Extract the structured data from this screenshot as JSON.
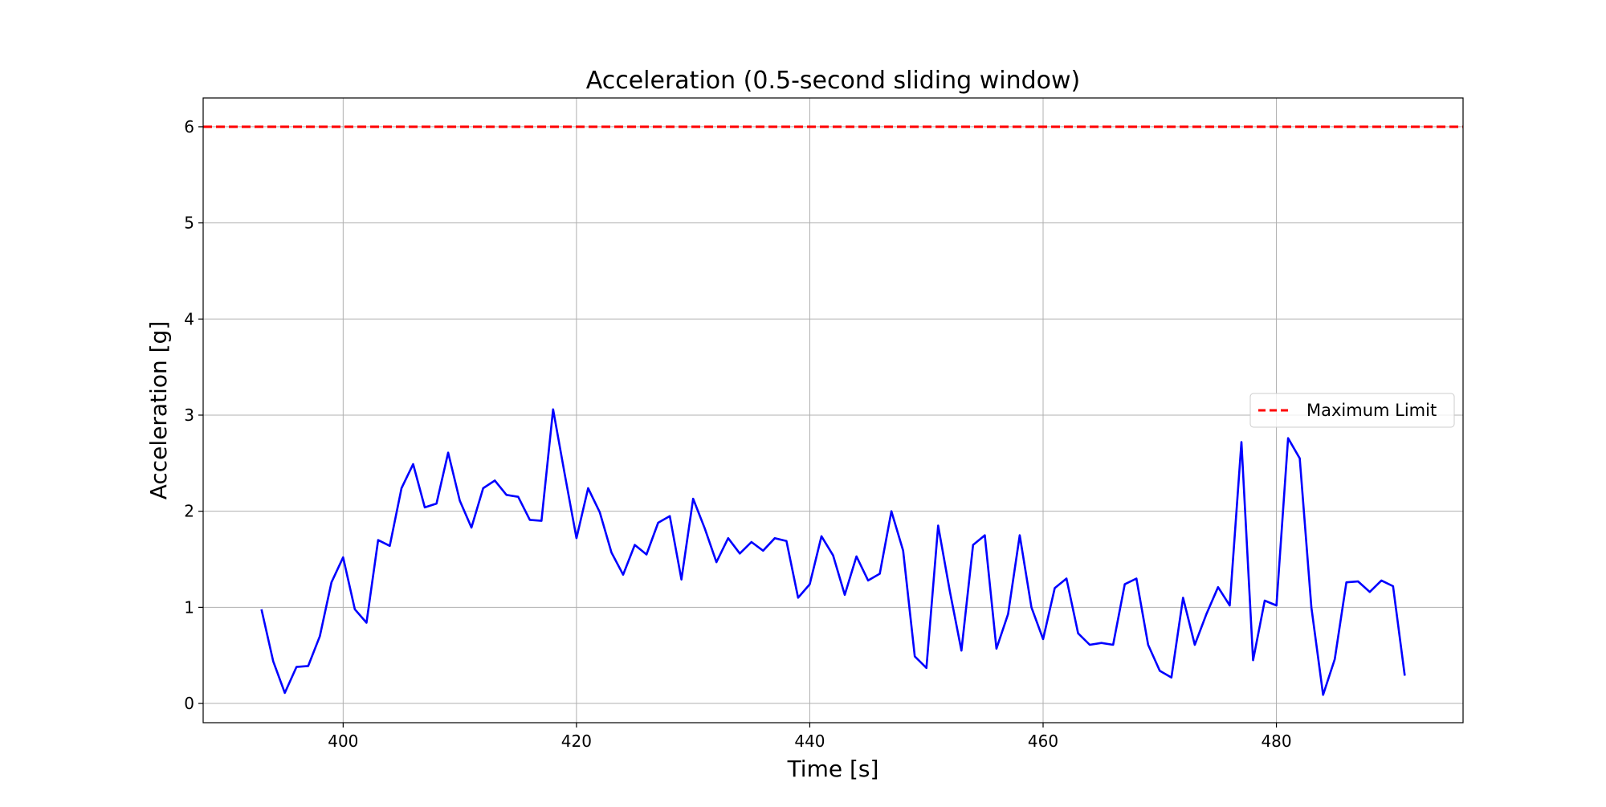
{
  "chart_data": {
    "type": "line",
    "title": "Acceleration (0.5-second sliding window)",
    "xlabel": "Time [s]",
    "ylabel": "Acceleration [g]",
    "xlim": [
      388,
      496
    ],
    "ylim": [
      -0.2,
      6.3
    ],
    "xticks": [
      400,
      420,
      440,
      460,
      480
    ],
    "yticks": [
      0,
      1,
      2,
      3,
      4,
      5,
      6
    ],
    "grid": true,
    "legend": {
      "placement": "center-right",
      "entries": [
        "Maximum Limit"
      ]
    },
    "hlines": [
      {
        "name": "Maximum Limit",
        "y": 6,
        "color": "#ff0000",
        "style": "dashed"
      }
    ],
    "series": [
      {
        "color": "#0000ff",
        "x": [
          393,
          394,
          395,
          396,
          397,
          398,
          399,
          400,
          401,
          402,
          403,
          404,
          405,
          406,
          407,
          408,
          409,
          410,
          411,
          412,
          413,
          414,
          415,
          416,
          417,
          418,
          419,
          420,
          421,
          422,
          423,
          424,
          425,
          426,
          427,
          428,
          429,
          430,
          431,
          432,
          433,
          434,
          435,
          436,
          437,
          438,
          439,
          440,
          441,
          442,
          443,
          444,
          445,
          446,
          447,
          448,
          449,
          450,
          451,
          452,
          453,
          454,
          455,
          456,
          457,
          458,
          459,
          460,
          461,
          462,
          463,
          464,
          465,
          466,
          467,
          468,
          469,
          470,
          471,
          472,
          473,
          474,
          475,
          476,
          477,
          478,
          479,
          480,
          481,
          482,
          483,
          484,
          485,
          486,
          487,
          488,
          489,
          490,
          491
        ],
        "y": [
          0.98,
          0.44,
          0.11,
          0.38,
          0.39,
          0.7,
          1.26,
          1.52,
          0.98,
          0.84,
          1.7,
          1.64,
          2.24,
          2.49,
          2.04,
          2.08,
          2.61,
          2.11,
          1.83,
          2.24,
          2.32,
          2.17,
          2.15,
          1.91,
          1.9,
          3.06,
          2.38,
          1.72,
          2.24,
          1.99,
          1.57,
          1.34,
          1.65,
          1.55,
          1.88,
          1.95,
          1.29,
          2.13,
          1.82,
          1.47,
          1.72,
          1.56,
          1.68,
          1.59,
          1.72,
          1.69,
          1.1,
          1.24,
          1.74,
          1.54,
          1.13,
          1.53,
          1.28,
          1.35,
          2.0,
          1.59,
          0.49,
          0.37,
          1.85,
          1.17,
          0.55,
          1.65,
          1.75,
          0.57,
          0.93,
          1.75,
          1.0,
          0.67,
          1.2,
          1.3,
          0.73,
          0.61,
          0.63,
          0.61,
          1.24,
          1.3,
          0.61,
          0.34,
          0.27,
          1.1,
          0.61,
          0.93,
          1.21,
          1.02,
          2.72,
          0.45,
          1.07,
          1.02,
          2.76,
          2.55,
          1.0,
          0.09,
          0.46,
          1.26,
          1.27,
          1.16,
          1.28,
          1.22,
          0.29
        ]
      }
    ]
  }
}
